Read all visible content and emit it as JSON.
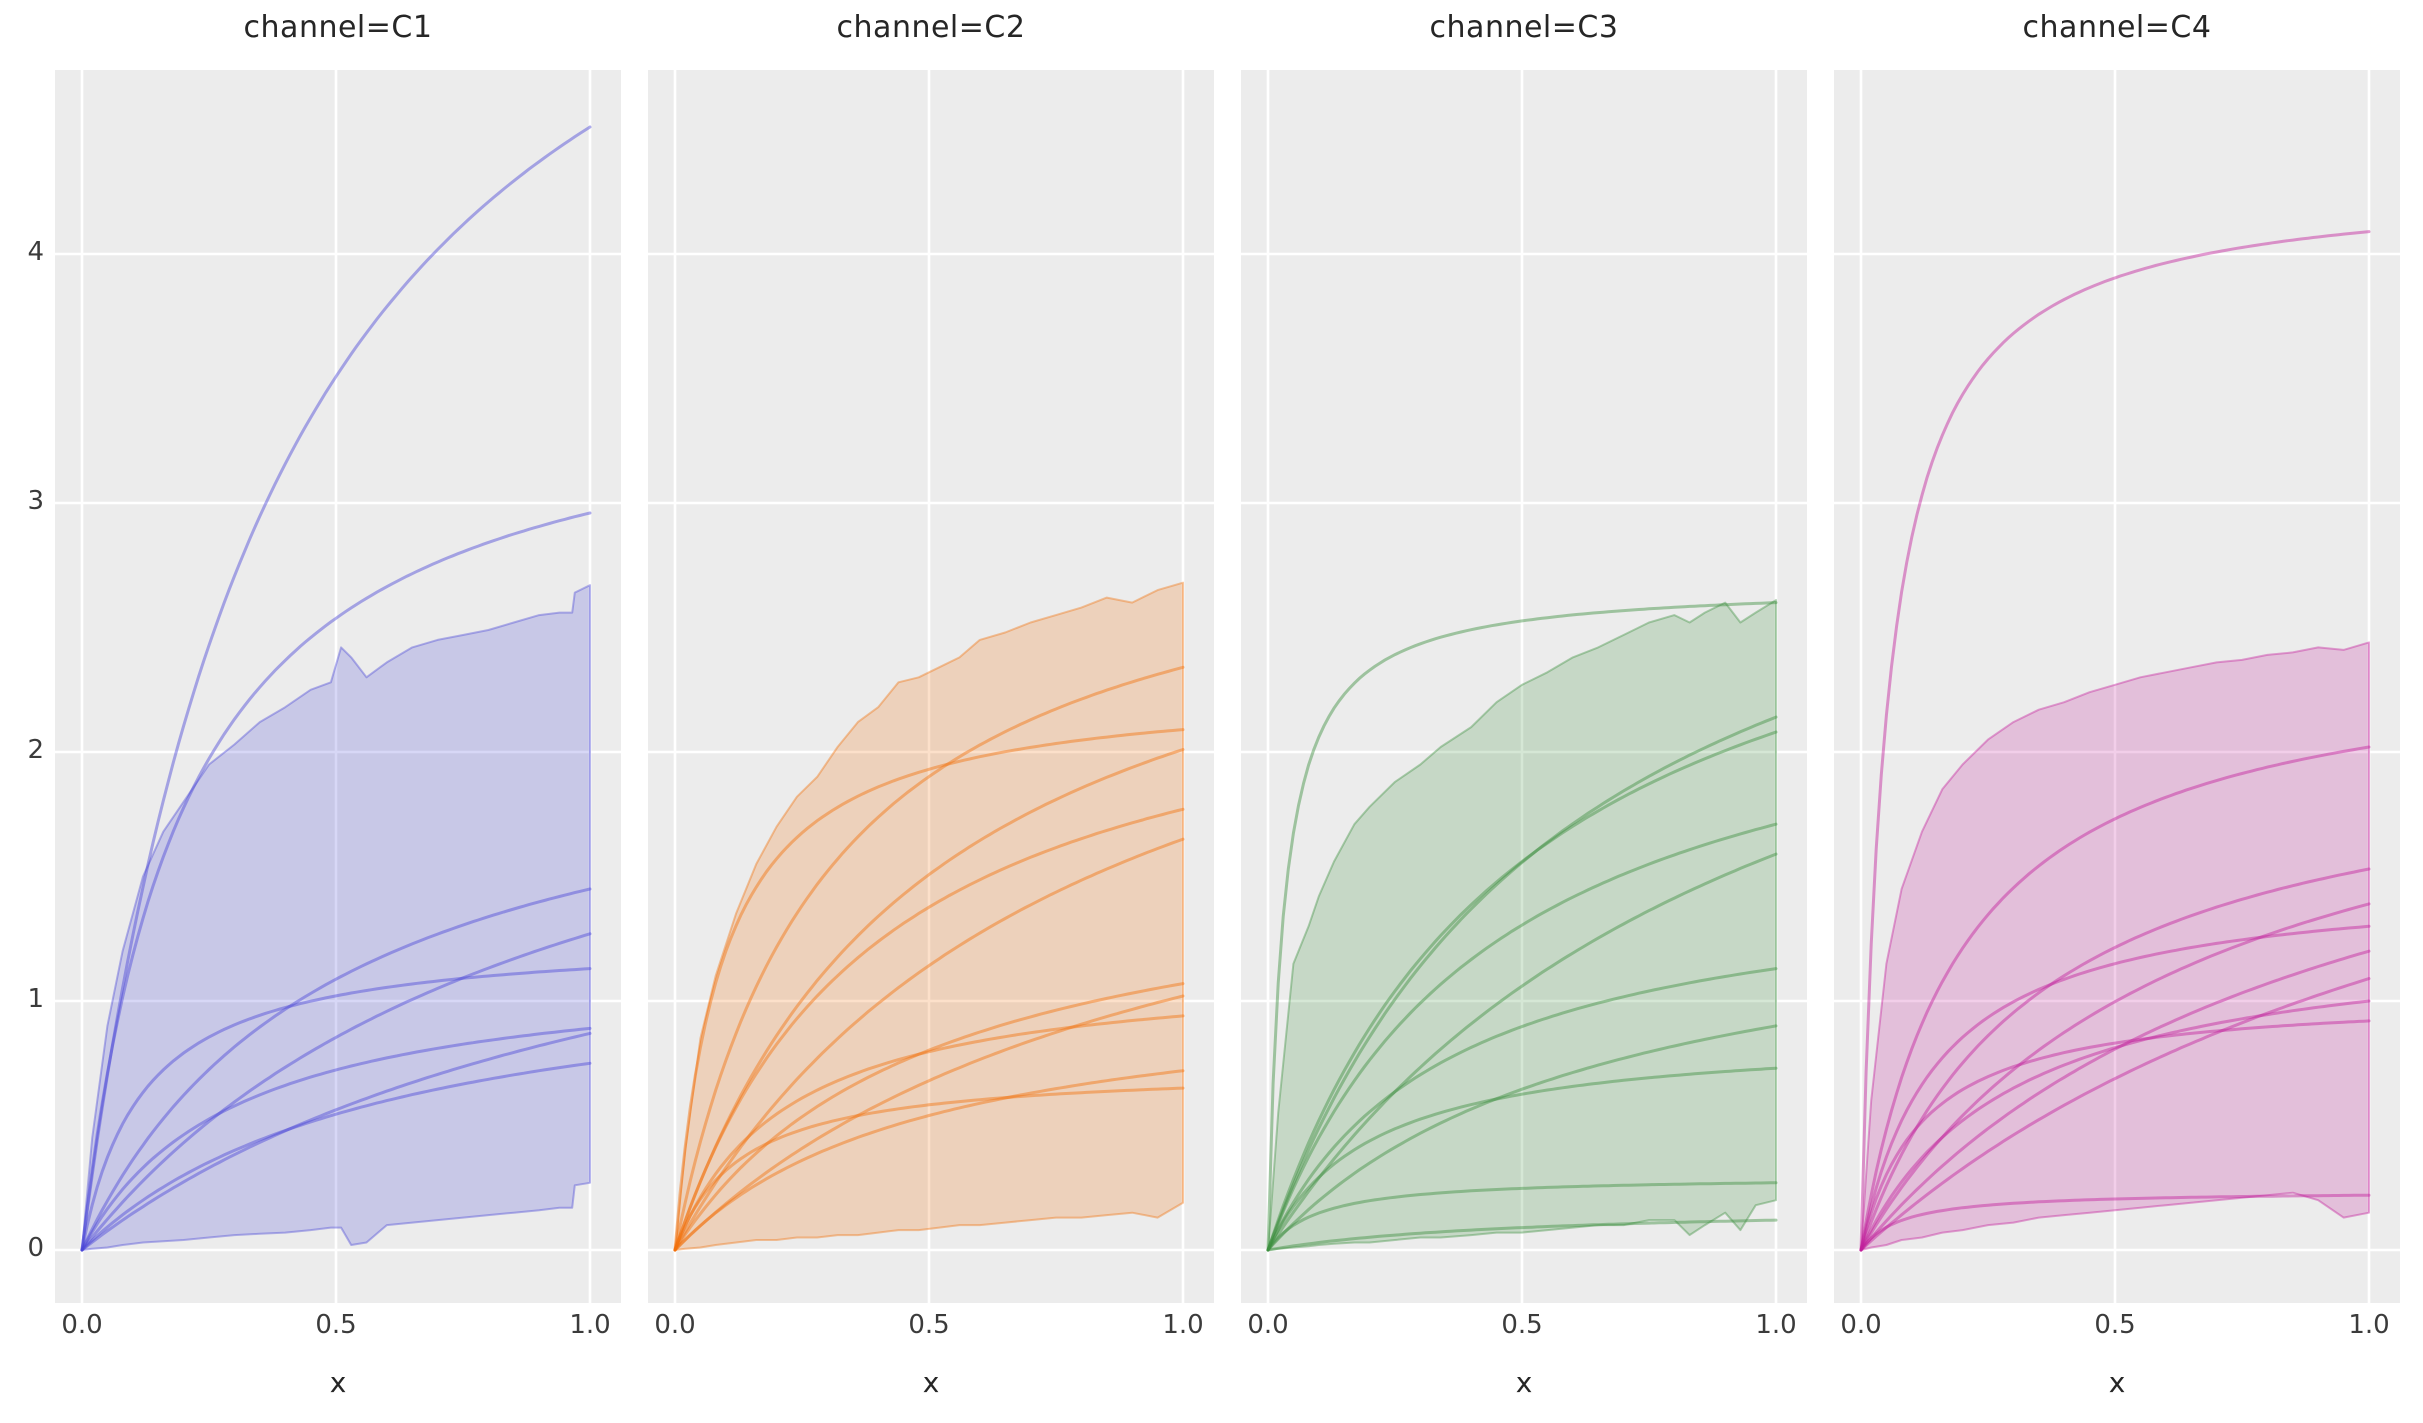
{
  "figure": {
    "background_color": "#ffffff",
    "panel_background_color": "#ececec",
    "grid_color": "#ffffff",
    "title_text_color": "#262626",
    "tick_text_color": "#3b3b3b"
  },
  "axes": {
    "x_label": "x",
    "x_ticks": [
      "0.0",
      "0.5",
      "1.0"
    ],
    "x_tick_values": [
      0,
      0.5,
      1.0
    ],
    "y_ticks": [
      "0",
      "1",
      "2",
      "3",
      "4"
    ],
    "y_tick_values": [
      0,
      1,
      2,
      3,
      4
    ],
    "xlim": [
      -0.053,
      1.061
    ],
    "ylim": [
      -0.281,
      4.739
    ],
    "grid": true
  },
  "chart_data": {
    "type": "line",
    "facet_variable": "channel",
    "curve_model": "y = y_end * (1 + k) * x / (x + k), for x in [0, 1]",
    "band_description": "shaded min-max envelope with noisy (jagged) edges",
    "line_alpha": 0.45,
    "fill_alpha": 0.22,
    "band_edge_alpha": 0.4,
    "facets": [
      {
        "title": "channel=C1",
        "channel": "C1",
        "color": "#4b48d8",
        "curves": [
          {
            "y_end": 4.51,
            "k": 0.4
          },
          {
            "y_end": 2.96,
            "k": 0.2
          },
          {
            "y_end": 1.45,
            "k": 0.5
          },
          {
            "y_end": 1.27,
            "k": 0.95
          },
          {
            "y_end": 1.13,
            "k": 0.12
          },
          {
            "y_end": 0.89,
            "k": 0.3
          },
          {
            "y_end": 0.87,
            "k": 1.2
          },
          {
            "y_end": 0.75,
            "k": 0.6
          }
        ],
        "band": {
          "x": [
            0,
            0.02,
            0.05,
            0.08,
            0.12,
            0.16,
            0.2,
            0.25,
            0.3,
            0.35,
            0.4,
            0.45,
            0.49,
            0.51,
            0.53,
            0.56,
            0.6,
            0.65,
            0.7,
            0.75,
            0.8,
            0.85,
            0.9,
            0.94,
            0.965,
            0.97,
            1.0
          ],
          "top": [
            0,
            0.45,
            0.9,
            1.2,
            1.5,
            1.68,
            1.8,
            1.95,
            2.03,
            2.12,
            2.18,
            2.25,
            2.28,
            2.42,
            2.38,
            2.3,
            2.36,
            2.42,
            2.45,
            2.47,
            2.49,
            2.52,
            2.55,
            2.56,
            2.56,
            2.64,
            2.67
          ],
          "bottom": [
            0,
            0.005,
            0.01,
            0.02,
            0.03,
            0.035,
            0.04,
            0.05,
            0.06,
            0.065,
            0.07,
            0.08,
            0.09,
            0.09,
            0.02,
            0.03,
            0.1,
            0.11,
            0.12,
            0.13,
            0.14,
            0.15,
            0.16,
            0.17,
            0.17,
            0.26,
            0.27
          ]
        }
      },
      {
        "title": "channel=C2",
        "channel": "C2",
        "color": "#f1720e",
        "curves": [
          {
            "y_end": 2.34,
            "k": 0.3
          },
          {
            "y_end": 2.09,
            "k": 0.09
          },
          {
            "y_end": 2.01,
            "k": 0.5
          },
          {
            "y_end": 1.77,
            "k": 0.4
          },
          {
            "y_end": 1.65,
            "k": 0.8
          },
          {
            "y_end": 1.07,
            "k": 0.5
          },
          {
            "y_end": 1.02,
            "k": 1.0
          },
          {
            "y_end": 0.94,
            "k": 0.22
          },
          {
            "y_end": 0.72,
            "k": 0.5
          },
          {
            "y_end": 0.65,
            "k": 0.13
          }
        ],
        "band": {
          "x": [
            0,
            0.02,
            0.05,
            0.08,
            0.12,
            0.16,
            0.2,
            0.24,
            0.28,
            0.32,
            0.36,
            0.4,
            0.44,
            0.48,
            0.52,
            0.56,
            0.6,
            0.65,
            0.7,
            0.75,
            0.8,
            0.85,
            0.9,
            0.95,
            1.0
          ],
          "top": [
            0,
            0.4,
            0.85,
            1.1,
            1.35,
            1.55,
            1.7,
            1.82,
            1.9,
            2.02,
            2.12,
            2.18,
            2.28,
            2.3,
            2.34,
            2.38,
            2.45,
            2.48,
            2.52,
            2.55,
            2.58,
            2.62,
            2.6,
            2.65,
            2.68
          ],
          "bottom": [
            0,
            0.005,
            0.01,
            0.02,
            0.03,
            0.04,
            0.04,
            0.05,
            0.05,
            0.06,
            0.06,
            0.07,
            0.08,
            0.08,
            0.09,
            0.1,
            0.1,
            0.11,
            0.12,
            0.13,
            0.13,
            0.14,
            0.15,
            0.13,
            0.19
          ]
        }
      },
      {
        "title": "channel=C3",
        "channel": "C3",
        "color": "#3f9140",
        "curves": [
          {
            "y_end": 2.6,
            "k": 0.03
          },
          {
            "y_end": 2.14,
            "k": 0.6
          },
          {
            "y_end": 2.08,
            "k": 0.5
          },
          {
            "y_end": 1.71,
            "k": 0.45
          },
          {
            "y_end": 1.59,
            "k": 1.0
          },
          {
            "y_end": 1.13,
            "k": 0.35
          },
          {
            "y_end": 0.9,
            "k": 0.65
          },
          {
            "y_end": 0.73,
            "k": 0.2
          },
          {
            "y_end": 0.27,
            "k": 0.1
          },
          {
            "y_end": 0.12,
            "k": 0.5
          }
        ],
        "band": {
          "x": [
            0,
            0.02,
            0.05,
            0.08,
            0.1,
            0.13,
            0.17,
            0.2,
            0.25,
            0.3,
            0.34,
            0.4,
            0.45,
            0.5,
            0.55,
            0.6,
            0.65,
            0.7,
            0.75,
            0.8,
            0.83,
            0.86,
            0.9,
            0.93,
            0.96,
            1.0
          ],
          "top": [
            0,
            0.55,
            1.15,
            1.3,
            1.42,
            1.56,
            1.71,
            1.78,
            1.88,
            1.95,
            2.02,
            2.1,
            2.2,
            2.27,
            2.32,
            2.38,
            2.42,
            2.47,
            2.52,
            2.55,
            2.52,
            2.56,
            2.6,
            2.52,
            2.56,
            2.61
          ],
          "bottom": [
            0,
            0.005,
            0.01,
            0.015,
            0.02,
            0.025,
            0.03,
            0.03,
            0.04,
            0.05,
            0.05,
            0.06,
            0.07,
            0.07,
            0.08,
            0.09,
            0.1,
            0.1,
            0.12,
            0.12,
            0.06,
            0.1,
            0.15,
            0.08,
            0.18,
            0.2
          ]
        }
      },
      {
        "title": "channel=C4",
        "channel": "C4",
        "color": "#c21f9b",
        "curves": [
          {
            "y_end": 4.09,
            "k": 0.05
          },
          {
            "y_end": 2.02,
            "k": 0.2
          },
          {
            "y_end": 1.53,
            "k": 0.35
          },
          {
            "y_end": 1.39,
            "k": 0.65
          },
          {
            "y_end": 1.3,
            "k": 0.15
          },
          {
            "y_end": 1.2,
            "k": 0.95
          },
          {
            "y_end": 1.09,
            "k": 1.4
          },
          {
            "y_end": 1.0,
            "k": 0.3
          },
          {
            "y_end": 0.92,
            "k": 0.12
          },
          {
            "y_end": 0.22,
            "k": 0.08
          }
        ],
        "band": {
          "x": [
            0,
            0.02,
            0.05,
            0.08,
            0.12,
            0.16,
            0.2,
            0.25,
            0.3,
            0.35,
            0.4,
            0.45,
            0.5,
            0.55,
            0.6,
            0.65,
            0.7,
            0.75,
            0.8,
            0.85,
            0.9,
            0.95,
            1.0
          ],
          "top": [
            0,
            0.6,
            1.15,
            1.45,
            1.68,
            1.85,
            1.95,
            2.05,
            2.12,
            2.17,
            2.2,
            2.24,
            2.27,
            2.3,
            2.32,
            2.34,
            2.36,
            2.37,
            2.39,
            2.4,
            2.42,
            2.41,
            2.44
          ],
          "bottom": [
            0,
            0.01,
            0.02,
            0.04,
            0.05,
            0.07,
            0.08,
            0.1,
            0.11,
            0.13,
            0.14,
            0.15,
            0.16,
            0.17,
            0.18,
            0.19,
            0.2,
            0.21,
            0.22,
            0.23,
            0.2,
            0.13,
            0.15
          ]
        }
      }
    ]
  }
}
